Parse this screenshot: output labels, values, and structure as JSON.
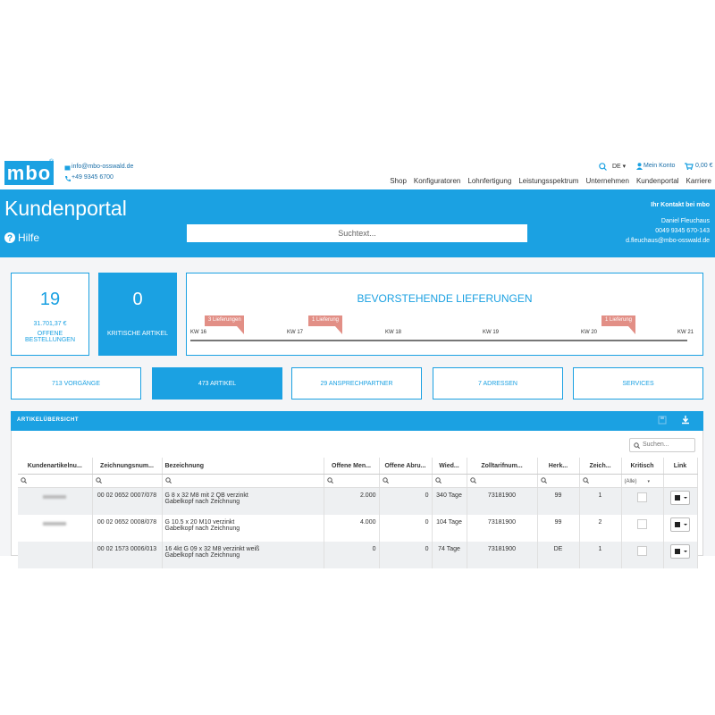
{
  "header": {
    "logo": "mbo",
    "registered": "®",
    "email": "info@mbo-osswald.de",
    "phone": "+49 9345 6700",
    "language": "DE",
    "account": "Mein Konto",
    "cart": "0,00 €",
    "nav": [
      "Shop",
      "Konfiguratoren",
      "Lohnfertigung",
      "Leistungsspektrum",
      "Unternehmen",
      "Kundenportal",
      "Karriere"
    ]
  },
  "banner": {
    "title": "Kundenportal",
    "help": "Hilfe",
    "search_placeholder": "Suchtext...",
    "contact_heading": "Ihr Kontakt bei mbo",
    "contact_name": "Daniel Fleuchaus",
    "contact_phone": "0049 9345 670-143",
    "contact_email": "d.fleuchaus@mbo-osswald.de"
  },
  "cards": [
    {
      "value": "19",
      "amount": "31.701,37 €",
      "label": "OFFENE BESTELLUNGEN"
    },
    {
      "value": "0",
      "label": "KRITISCHE ARTIKEL"
    }
  ],
  "deliveries": {
    "title": "BEVORSTEHENDE LIEFERUNGEN",
    "weeks": [
      "KW 16",
      "KW 17",
      "KW 18",
      "KW 19",
      "KW 20",
      "KW 21"
    ],
    "flags": [
      "3 Lieferungen",
      "1 Lieferung",
      "1 Lieferung"
    ]
  },
  "tabs": [
    "713 VORGÄNGE",
    "473 ARTIKEL",
    "29 ANSPRECHPARTNER",
    "7 ADRESSEN",
    "SERVICES"
  ],
  "panel": {
    "title": "ARTIKELÜBERSICHT",
    "search_placeholder": "Suchen...",
    "columns": [
      "Kundenartikelnu...",
      "Zeichnungsnum...",
      "Bezeichnung",
      "Offene Men...",
      "Offene Abru...",
      "Wied...",
      "Zolltarifnum...",
      "Herk...",
      "Zeich...",
      "Kritisch",
      "Link"
    ],
    "filter_option": "(Alle)",
    "rows": [
      [
        null,
        "00 02 0652 0007/078",
        [
          "G 8 x 32 M8 mit 2 QB verzinkt",
          "Gabelkopf nach Zeichnung"
        ],
        "2.000",
        "0",
        "340 Tage",
        "73181900",
        "99",
        "1"
      ],
      [
        null,
        "00 02 0652 0008/078",
        [
          "G 10.5 x 20 M10 verzinkt",
          "Gabelkopf nach Zeichnung"
        ],
        "4.000",
        "0",
        "104 Tage",
        "73181900",
        "99",
        "2"
      ],
      [
        null,
        "00 02 1573 0006/013",
        [
          "16 4kt G 09 x 32 M8 verzinkt weiß",
          "Gabelkopf nach Zeichnung"
        ],
        "0",
        "0",
        "74 Tage",
        "73181900",
        "DE",
        "1"
      ]
    ]
  }
}
